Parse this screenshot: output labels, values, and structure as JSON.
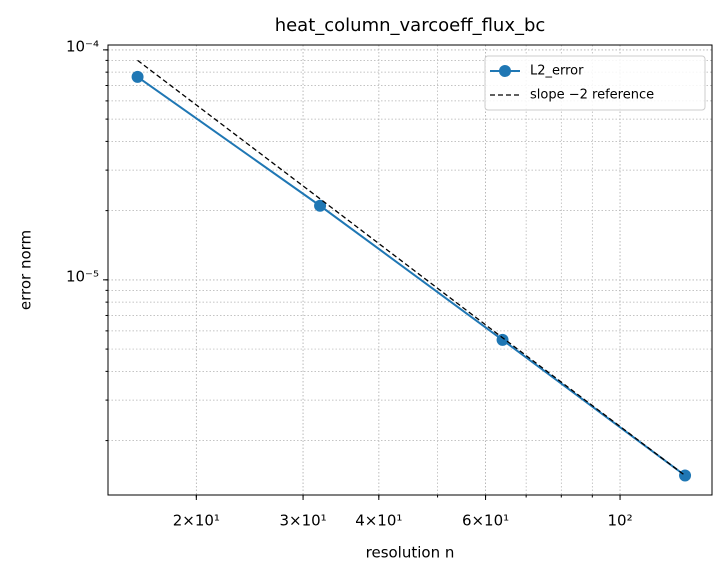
{
  "chart_data": {
    "type": "line",
    "title": "heat_column_varcoeff_flux_bc",
    "x_label": "resolution n",
    "y_label": "error norm",
    "x": [
      16,
      32,
      64,
      128
    ],
    "series": [
      {
        "name": "L2_error",
        "color": "#1f77b4",
        "style": "solid",
        "marker": true,
        "values": [
          7.63e-05,
          2.1e-05,
          5.48e-06,
          1.41e-06
        ]
      },
      {
        "name": "slope −2 reference",
        "color": "#000000",
        "style": "dashed",
        "marker": false,
        "values": [
          9e-05,
          2.25e-05,
          5.6e-06,
          1.41e-06
        ]
      }
    ],
    "xscale": "log",
    "yscale": "log",
    "xlim": [
      14.3,
      141.8
    ],
    "ylim": [
      1.16e-06,
      0.000105
    ],
    "xticks": [
      {
        "value": 20,
        "label": "2×10¹"
      },
      {
        "value": 30,
        "label": "3×10¹"
      },
      {
        "value": 40,
        "label": "4×10¹"
      },
      {
        "value": 60,
        "label": "6×10¹"
      },
      {
        "value": 100,
        "label": "10²"
      }
    ],
    "yticks": [
      {
        "value": 1e-05,
        "label": "10⁻⁵"
      },
      {
        "value": 0.0001,
        "label": "10⁻⁴"
      }
    ],
    "grid": true,
    "legend": "upper right"
  }
}
